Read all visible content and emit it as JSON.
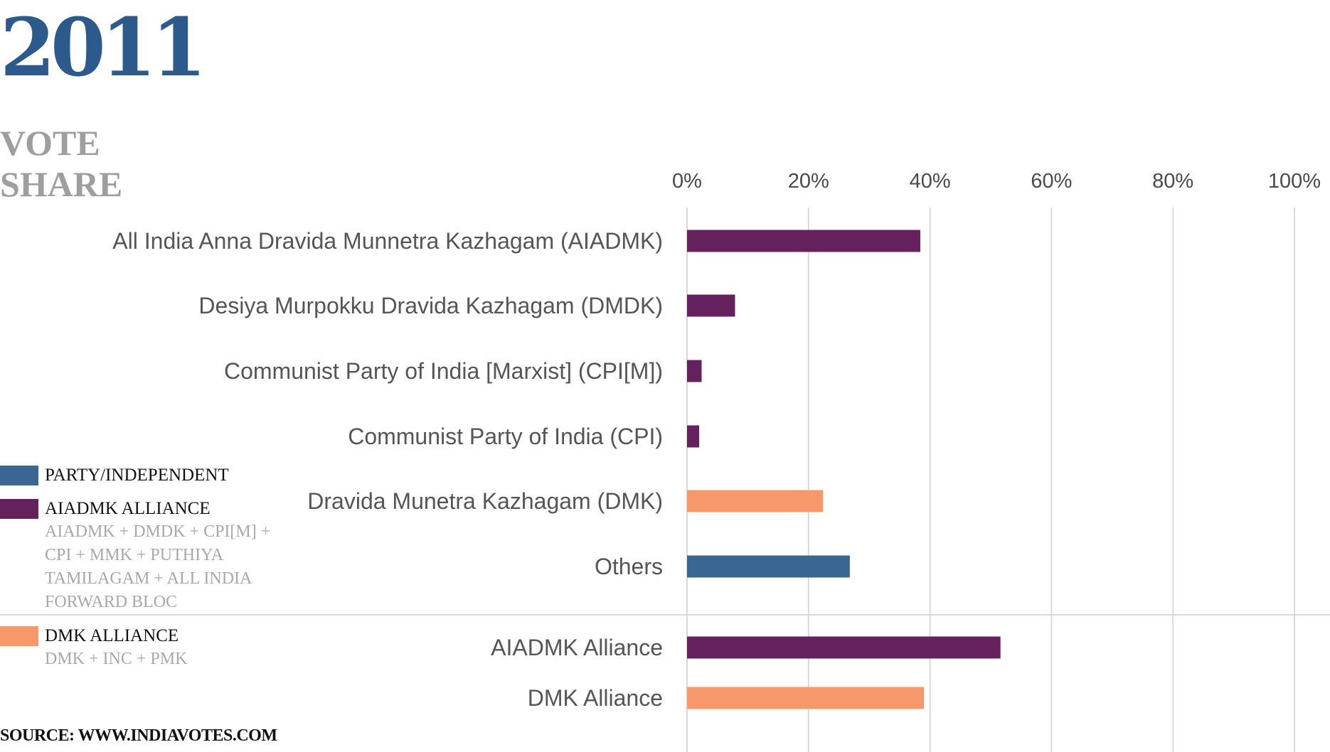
{
  "header": {
    "year": "2011",
    "subtitle_line1": "VOTE",
    "subtitle_line2": "SHARE"
  },
  "legend": {
    "items": [
      {
        "label": "PARTY/INDEPENDENT",
        "description": "",
        "color": "#3a6694"
      },
      {
        "label": "AIADMK ALLIANCE",
        "description": "AIADMK + DMDK + CPI[M] + CPI + MMK  + PUTHIYA TAMILAGAM + ALL INDIA FORWARD BLOC",
        "color": "#65205e"
      },
      {
        "label": "DMK ALLIANCE",
        "description": "DMK + INC + PMK",
        "color": "#f6986a"
      }
    ]
  },
  "source": "SOURCE: WWW.INDIAVOTES.COM",
  "colors": {
    "party": "#3a6694",
    "aiadmk_alliance": "#65205e",
    "dmk_alliance": "#f6986a",
    "grid": "#d9d9d9",
    "label_text": "#555555"
  },
  "chart_data": {
    "type": "bar",
    "orientation": "horizontal",
    "xlim": [
      0,
      100
    ],
    "xticks": [
      "0%",
      "20%",
      "40%",
      "60%",
      "80%",
      "100%"
    ],
    "grid": true,
    "categories": [
      "All India Anna Dravida Munnetra Kazhagam (AIADMK)",
      "Desiya Murpokku Dravida Kazhagam (DMDK)",
      "Communist Party of India [Marxist] (CPI[M])",
      "Communist Party of India (CPI)",
      "Dravida Munetra Kazhagam (DMK)",
      "Others",
      "AIADMK Alliance",
      "DMK Alliance"
    ],
    "values": [
      38.4,
      7.9,
      2.4,
      2.0,
      22.4,
      26.8,
      51.6,
      39.0
    ],
    "bar_groups": [
      "aiadmk_alliance",
      "aiadmk_alliance",
      "aiadmk_alliance",
      "aiadmk_alliance",
      "dmk_alliance",
      "party",
      "aiadmk_alliance",
      "dmk_alliance"
    ]
  }
}
